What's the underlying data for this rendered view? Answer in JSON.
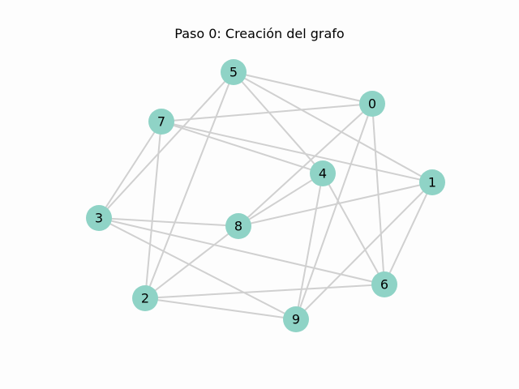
{
  "title": "Paso 0: Creación del grafo",
  "colors": {
    "node_fill": "#8fd3c6",
    "edge": "#d0d0d0",
    "background": "#fdfdfd"
  },
  "nodes": [
    {
      "id": "0",
      "label": "0"
    },
    {
      "id": "1",
      "label": "1"
    },
    {
      "id": "2",
      "label": "2"
    },
    {
      "id": "3",
      "label": "3"
    },
    {
      "id": "4",
      "label": "4"
    },
    {
      "id": "5",
      "label": "5"
    },
    {
      "id": "6",
      "label": "6"
    },
    {
      "id": "7",
      "label": "7"
    },
    {
      "id": "8",
      "label": "8"
    },
    {
      "id": "9",
      "label": "9"
    }
  ],
  "edges": [
    [
      "5",
      "0"
    ],
    [
      "5",
      "1"
    ],
    [
      "5",
      "4"
    ],
    [
      "5",
      "3"
    ],
    [
      "5",
      "2"
    ],
    [
      "7",
      "0"
    ],
    [
      "7",
      "4"
    ],
    [
      "7",
      "1"
    ],
    [
      "7",
      "3"
    ],
    [
      "7",
      "2"
    ],
    [
      "0",
      "8"
    ],
    [
      "0",
      "9"
    ],
    [
      "0",
      "6"
    ],
    [
      "4",
      "8"
    ],
    [
      "4",
      "9"
    ],
    [
      "4",
      "6"
    ],
    [
      "1",
      "8"
    ],
    [
      "1",
      "6"
    ],
    [
      "1",
      "9"
    ],
    [
      "3",
      "8"
    ],
    [
      "3",
      "6"
    ],
    [
      "3",
      "9"
    ],
    [
      "8",
      "2"
    ],
    [
      "2",
      "6"
    ],
    [
      "2",
      "9"
    ]
  ]
}
